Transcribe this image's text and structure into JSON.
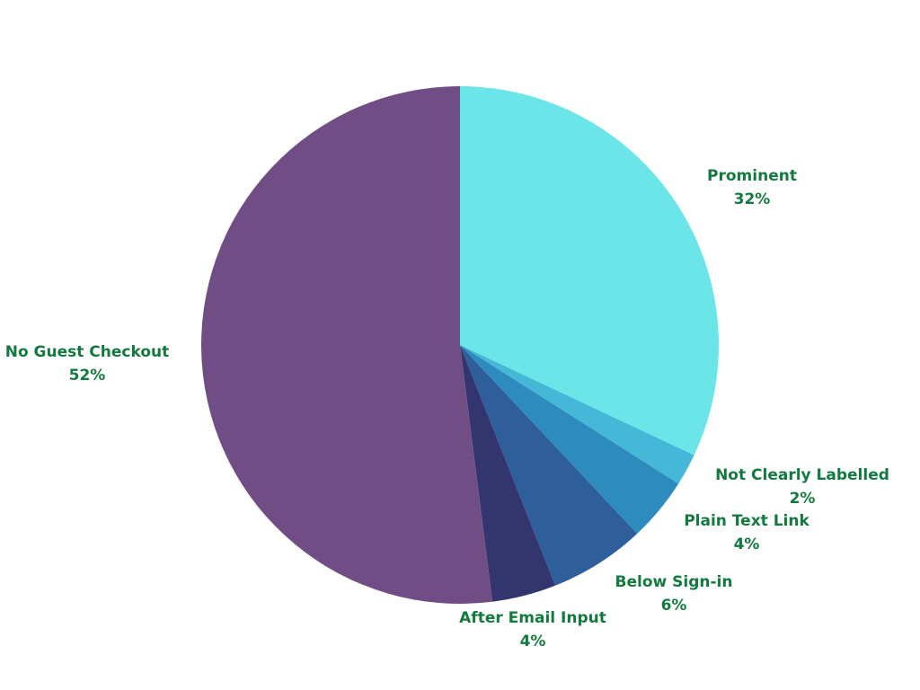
{
  "chart_data": {
    "type": "pie",
    "categories": [
      "Prominent",
      "Not Clearly Labelled",
      "Plain Text Link",
      "Below Sign-in",
      "After Email Input",
      "No Guest Checkout"
    ],
    "values": [
      32,
      2,
      4,
      6,
      4,
      52
    ],
    "value_labels": [
      "32%",
      "2%",
      "4%",
      "6%",
      "4%",
      "52%"
    ],
    "colors": [
      "#6be5e8",
      "#45b8d8",
      "#2e8bbd",
      "#2e5f9b",
      "#33366e",
      "#714d85"
    ]
  }
}
